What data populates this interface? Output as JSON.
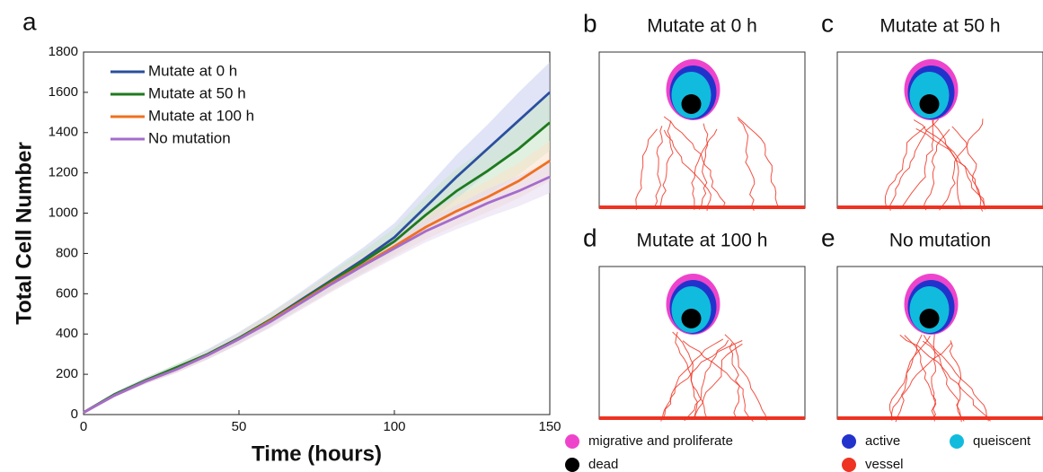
{
  "chart_data": {
    "type": "line",
    "panel_label": "a",
    "xlabel": "Time (hours)",
    "ylabel": "Total Cell Number",
    "x": [
      0,
      10,
      20,
      30,
      40,
      50,
      60,
      70,
      80,
      90,
      100,
      110,
      120,
      130,
      140,
      150
    ],
    "xlim": [
      0,
      150
    ],
    "xticks": [
      0,
      50,
      100,
      150
    ],
    "ylim": [
      0,
      1800
    ],
    "yticks": [
      0,
      200,
      400,
      600,
      800,
      1000,
      1200,
      1400,
      1600,
      1800
    ],
    "legend": "upper left",
    "series": [
      {
        "name": "Mutate at 0 h",
        "color": "#2b4f9e",
        "band_color": "#c9cdee",
        "values": [
          10,
          100,
          170,
          230,
          300,
          380,
          470,
          570,
          670,
          770,
          880,
          1030,
          1180,
          1320,
          1460,
          1600
        ],
        "lower": [
          5,
          90,
          155,
          210,
          275,
          350,
          435,
          530,
          620,
          710,
          810,
          940,
          1070,
          1200,
          1320,
          1450
        ],
        "upper": [
          15,
          110,
          185,
          250,
          325,
          410,
          505,
          610,
          720,
          830,
          950,
          1120,
          1290,
          1440,
          1600,
          1750
        ]
      },
      {
        "name": "Mutate at 50 h",
        "color": "#1e7a1e",
        "band_color": "#c8e6c8",
        "values": [
          10,
          100,
          170,
          235,
          300,
          380,
          470,
          565,
          665,
          760,
          860,
          990,
          1110,
          1210,
          1320,
          1450
        ],
        "lower": [
          5,
          92,
          158,
          218,
          280,
          355,
          440,
          530,
          620,
          705,
          795,
          900,
          1000,
          1090,
          1190,
          1310
        ],
        "upper": [
          15,
          108,
          182,
          252,
          320,
          405,
          500,
          600,
          710,
          815,
          925,
          1080,
          1220,
          1330,
          1450,
          1590
        ]
      },
      {
        "name": "Mutate at 100 h",
        "color": "#f07020",
        "band_color": "#fbe0c8",
        "values": [
          10,
          95,
          165,
          225,
          295,
          375,
          465,
          560,
          655,
          745,
          835,
          930,
          1010,
          1080,
          1160,
          1260
        ],
        "lower": [
          5,
          88,
          152,
          208,
          275,
          350,
          435,
          525,
          615,
          700,
          785,
          870,
          940,
          1005,
          1075,
          1160
        ],
        "upper": [
          15,
          102,
          178,
          242,
          315,
          400,
          495,
          595,
          695,
          790,
          885,
          990,
          1080,
          1160,
          1250,
          1360
        ]
      },
      {
        "name": "No mutation",
        "color": "#a46ccc",
        "band_color": "#e6d8f0",
        "values": [
          10,
          95,
          165,
          225,
          295,
          375,
          460,
          555,
          650,
          740,
          825,
          910,
          980,
          1050,
          1110,
          1180
        ],
        "lower": [
          5,
          88,
          152,
          208,
          275,
          350,
          430,
          520,
          610,
          695,
          775,
          855,
          920,
          980,
          1035,
          1100
        ],
        "upper": [
          15,
          102,
          178,
          242,
          315,
          400,
          490,
          590,
          690,
          785,
          875,
          965,
          1040,
          1120,
          1185,
          1260
        ]
      }
    ]
  },
  "panels": [
    {
      "label": "b",
      "title": "Mutate at 0 h"
    },
    {
      "label": "c",
      "title": "Mutate at 50 h"
    },
    {
      "label": "d",
      "title": "Mutate at 100 h"
    },
    {
      "label": "e",
      "title": "No mutation"
    }
  ],
  "cell_legend": [
    {
      "name": "migrative and proliferate",
      "color": "#ee44cc"
    },
    {
      "name": "dead",
      "color": "#000000"
    },
    {
      "name": "active",
      "color": "#2233cc"
    },
    {
      "name": "queiscent",
      "color": "#11bbdd"
    },
    {
      "name": "vessel",
      "color": "#ee3322"
    }
  ]
}
